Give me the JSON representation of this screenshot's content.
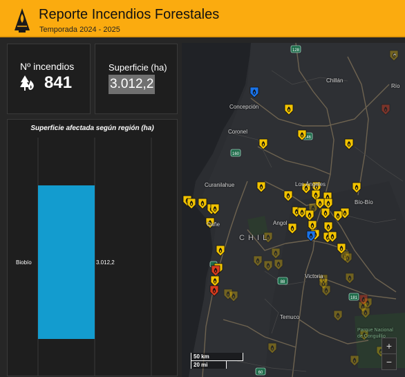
{
  "header": {
    "title": "Reporte Incendios Forestales",
    "subtitle": "Temporada 2024 - 2025",
    "logo_icon": "fire-agency-logo-icon"
  },
  "kpi_fires": {
    "label": "Nº incendios",
    "value": "841",
    "icon": "forest-fire-icon"
  },
  "kpi_area": {
    "label": "Superficie (ha)",
    "value": "3.012,2"
  },
  "chart_data": {
    "type": "bar",
    "orientation": "vertical",
    "title": "Superficie afectada según región (ha)",
    "categories": [
      "Biobío"
    ],
    "values": [
      3012.2
    ],
    "data_labels": [
      "3.012,2"
    ],
    "bar_color": "#139ccf",
    "grid": true
  },
  "map": {
    "places": {
      "concepcion": "Concepción",
      "chillan": "Chillán",
      "coronel": "Coronel",
      "curanilahue": "Curanilahue",
      "los_angeles": "Los Ángeles",
      "biobio": "Bío-Bío",
      "canete": "Cañe",
      "angol": "Angol",
      "chile": "C H I L",
      "victoria": "Victoria",
      "temuco": "Temuco",
      "rio": "Río",
      "parque": "Parque Nacional\nde Conguillío"
    },
    "routes": [
      "128",
      "146",
      "160",
      "88",
      "181",
      "60"
    ],
    "zoom_in": "+",
    "zoom_out": "−",
    "scale_km": "50 km",
    "scale_mi": "20 mi",
    "collapse_icon": "chevron-double-down-icon",
    "colors": {
      "active": "#f2c300",
      "controlled": "#1a73e8",
      "critical": "#d93b1e"
    }
  }
}
